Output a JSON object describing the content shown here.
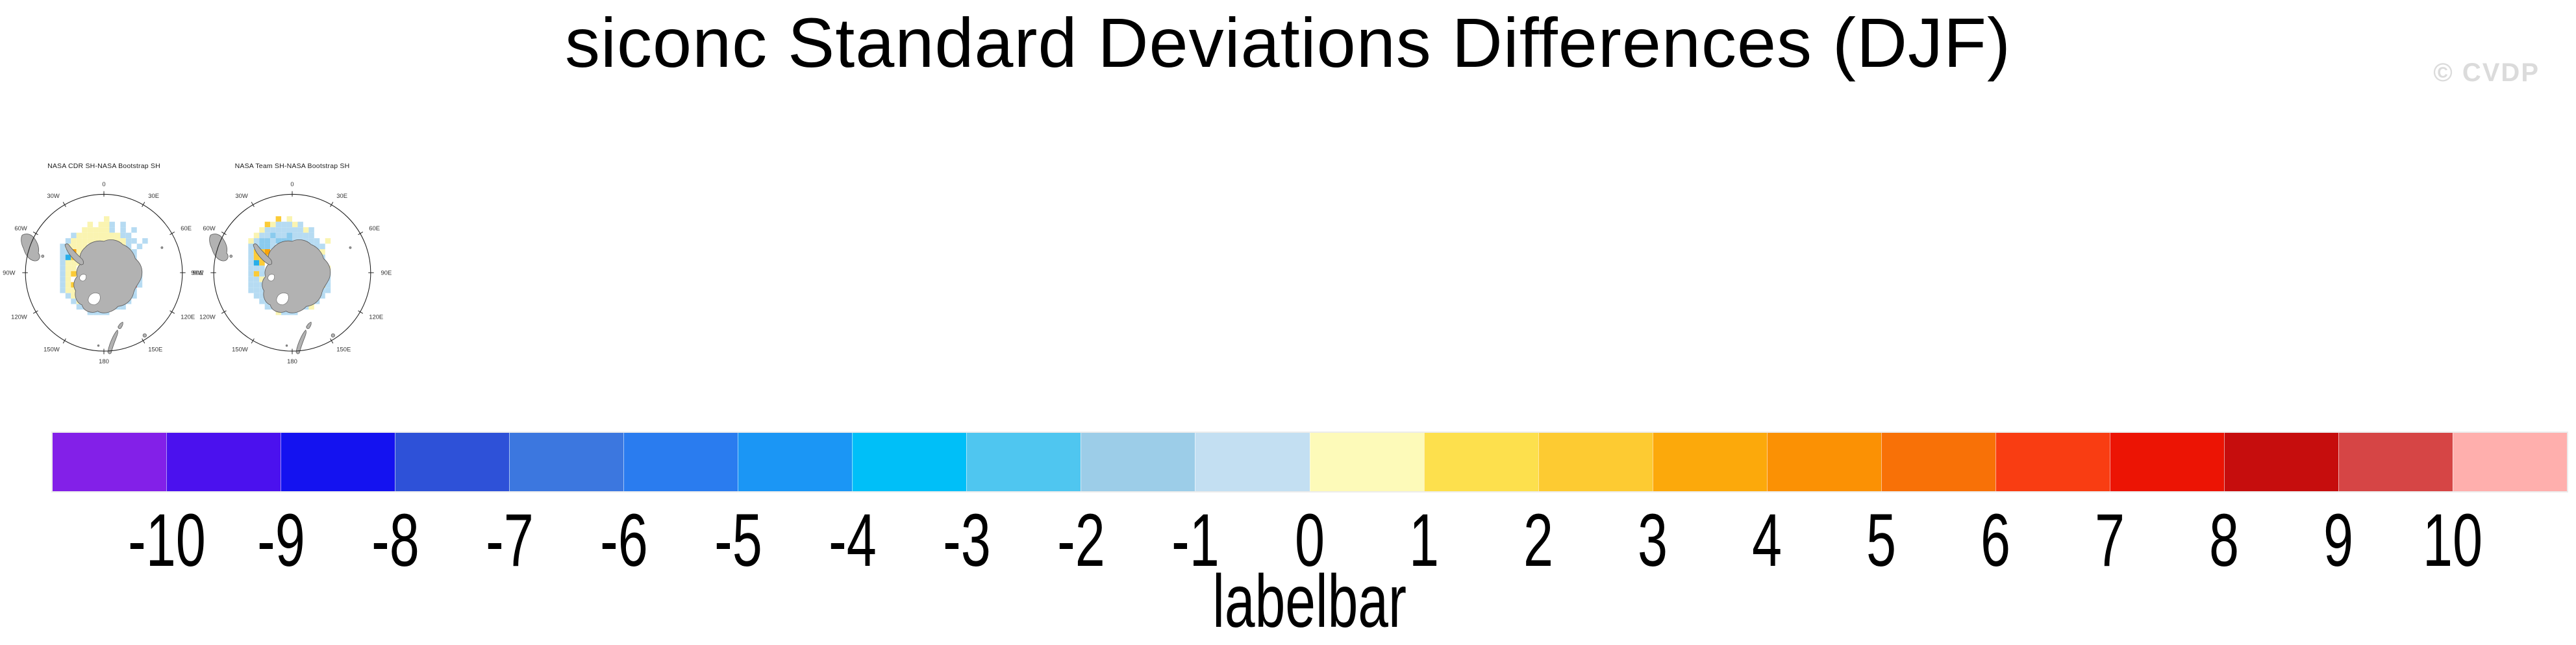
{
  "title": "siconc Standard Deviations Differences (DJF)",
  "watermark": "© CVDP",
  "maps": [
    {
      "title": "NASA CDR SH-NASA Bootstrap SH",
      "grid": [
        "..........y.........",
        ".......y.yyb.b......",
        "......yyyyyb.b.b....",
        "....byyyyyyyybb.....",
        "...byyyyyyyyyybb.b..",
        "..byyyy.yyoyyyb.b...",
        "..bboyy......yyb....",
        "..bcgy........yb....",
        "..byyy........gb....",
        "..byy..........b....",
        "..byg..........yb...",
        "..by...........yb...",
        "..byg..........rb...",
        "..byy.........yb....",
        "...byyy.....yyyb....",
        "....byyyyyyyyyb.....",
        ".....bbyyyybbb......",
        ".......bbbb........."
      ]
    },
    {
      "title": "NASA Team SH-NASA Bootstrap SH",
      "grid": [
        ".......g.y..........",
        ".....gybbbyb........",
        "....ybbbbbbbyb......",
        "...ybbBbbBbbbb......",
        "..ybBBbBBBbbbbb.y...",
        "..bbBBb.bgybbbbb....",
        "..bggo......bbby....",
        "..bggg.......bbb....",
        "..bcg.........yb....",
        "..bbb.........bby...",
        "..bgb..........bb...",
        "..bby..........gb...",
        "..bbb..........ob...",
        "..bbbB........ybb...",
        "...bbBB.....gbbb....",
        "....bbdd..bbbbb.....",
        ".....bbbbbbbby......",
        ".......ybbb........."
      ]
    }
  ],
  "map_cell_colors": {
    "y": "#FAF4B1",
    "Y": "#FCE04F",
    "g": "#FBCB37",
    "o": "#F9A309",
    "r": "#EC1404",
    "b": "#B6DBF2",
    "B": "#8ACBEE",
    "c": "#27AEE9",
    "d": "#3FBCF2"
  },
  "lon_axis": [
    [
      "0",
      0
    ],
    [
      "30E",
      30
    ],
    [
      "60E",
      60
    ],
    [
      "90E",
      90
    ],
    [
      "120E",
      120
    ],
    [
      "150E",
      150
    ],
    [
      "180",
      180
    ],
    [
      "150W",
      210
    ],
    [
      "120W",
      240
    ],
    [
      "90W",
      270
    ],
    [
      "60W",
      300
    ],
    [
      "30W",
      330
    ]
  ],
  "labelbar": {
    "caption": "labelbar",
    "tick_labels": [
      "-10",
      "-9",
      "-8",
      "-7",
      "-6",
      "-5",
      "-4",
      "-3",
      "-2",
      "-1",
      "0",
      "1",
      "2",
      "3",
      "4",
      "5",
      "6",
      "7",
      "8",
      "9",
      "10"
    ],
    "colors": [
      "#8320E8",
      "#4B11EE",
      "#1412F0",
      "#2E51D8",
      "#3C77DF",
      "#2A7CEF",
      "#1B96F5",
      "#00BFF8",
      "#4FC6F0",
      "#9CCDE8",
      "#C3DFF2",
      "#FDFAB9",
      "#FDE04D",
      "#FDCB32",
      "#FCA90B",
      "#FB9104",
      "#F87107",
      "#F93D12",
      "#EC1404",
      "#C60D0D",
      "#D64545",
      "#FFAFAD"
    ]
  },
  "land_color": "#B2B2B2",
  "chart_data": {
    "type": "heatmap",
    "title": "siconc Standard Deviations Differences (DJF)",
    "variable": "siconc",
    "season": "DJF",
    "projection": "south polar stereographic",
    "panels": [
      {
        "title": "NASA CDR SH-NASA Bootstrap SH",
        "summary": "mostly +0..1 (pale yellow) ring around Antarctica with -1..0 (pale blue) outer fringe; isolated +3..5 orange cells, one +7..8 red cell near 120E coast, one -4 cyan cell near the peninsula"
      },
      {
        "title": "NASA Team SH-NASA Bootstrap SH",
        "summary": "mostly -1..0 and -2..-3 (light/medium blue) ring around Antarctica; cluster of +2..4 gold/orange cells west of the peninsula; scattered +1..2 yellow cells; deeper -4 blue patch in Ross Sea"
      }
    ],
    "colorbar": {
      "label": "labelbar",
      "ticks": [
        -10,
        -9,
        -8,
        -7,
        -6,
        -5,
        -4,
        -3,
        -2,
        -1,
        0,
        1,
        2,
        3,
        4,
        5,
        6,
        7,
        8,
        9,
        10
      ],
      "n_colors": 22,
      "legend_position": "bottom"
    },
    "lon_gridline_labels": [
      "0",
      "30E",
      "60E",
      "90E",
      "120E",
      "150E",
      "180",
      "150W",
      "120W",
      "90W",
      "60W",
      "30W"
    ]
  }
}
